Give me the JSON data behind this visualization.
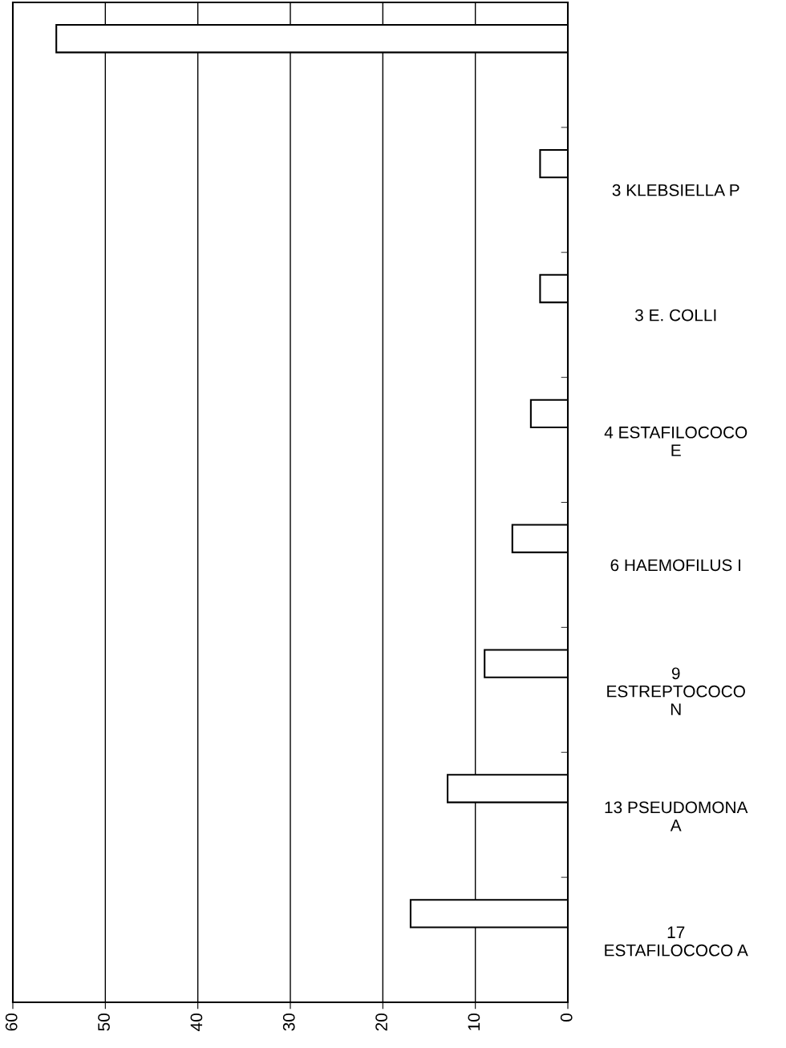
{
  "chart_data": {
    "type": "bar",
    "orientation": "horizontal",
    "categories": [
      null,
      "3 KLEBSIELLA P",
      "3 E. COLLI",
      "4 ESTAFILOCOCO\nE",
      "6 HAEMOFILUS I",
      "9\nESTREPTOCOCO\nN",
      "13 PSEUDOMONA\nA",
      "17\nESTAFILOCOCO A"
    ],
    "values": [
      55.3,
      3,
      3,
      4,
      6,
      9,
      13,
      17
    ],
    "color": "#ffffff",
    "xlim": [
      60,
      0
    ],
    "xticks": [
      0,
      10,
      20,
      30,
      40,
      50,
      60
    ],
    "grid": "x"
  }
}
